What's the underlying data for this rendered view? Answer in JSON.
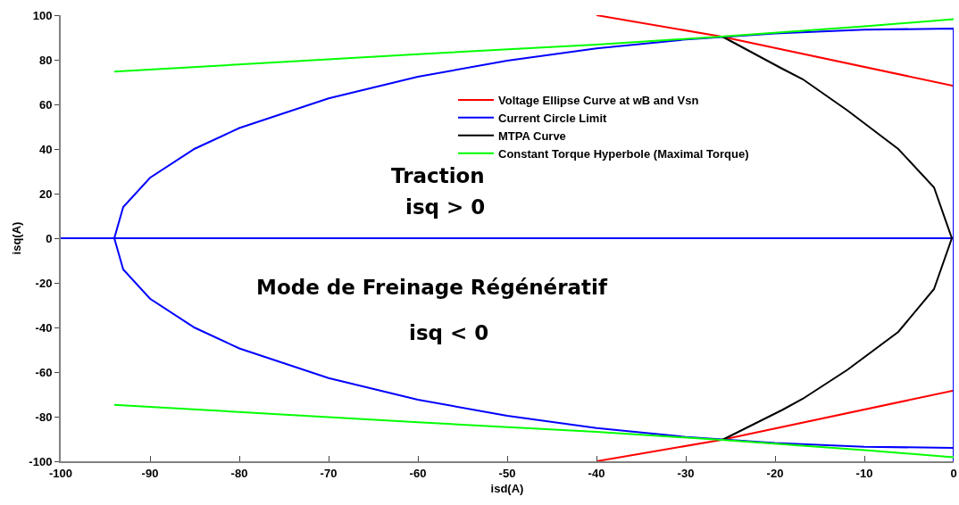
{
  "chart_data": {
    "type": "line",
    "xlabel": "isd(A)",
    "ylabel": "isq(A)",
    "xlim": [
      -100,
      0
    ],
    "xticks": [
      -100,
      -90,
      -80,
      -70,
      -60,
      -50,
      -40,
      -30,
      -20,
      -10,
      0
    ],
    "ylim": [
      -100,
      100
    ],
    "yticks": [
      -100,
      -80,
      -60,
      -40,
      -20,
      0,
      20,
      40,
      60,
      80,
      100
    ],
    "grid": false,
    "legend": "top",
    "marker": "none",
    "line_style": "solid",
    "annotations": [
      "Traction",
      "isq > 0",
      "Mode de Freinage Régénératif",
      "isq < 0"
    ],
    "series": [
      {
        "name": "Voltage Ellipse Curve at wB and Vsn",
        "color": "#ff0000",
        "x": [
          -40,
          -26,
          0,
          null,
          -40,
          -26,
          0
        ],
        "values": [
          100,
          90.4,
          68.3,
          null,
          -100,
          -90.4,
          -68.3
        ]
      },
      {
        "name": "Current Circle Limit",
        "color": "#0000ff",
        "x": [
          0,
          0,
          -10,
          -20,
          -30,
          -40,
          -50,
          -60,
          -70,
          -80,
          -85,
          -90,
          -93,
          -94,
          -93,
          -90,
          -85,
          -80,
          -70,
          -60,
          -50,
          -40,
          -30,
          -20,
          -10,
          0,
          null,
          -100,
          0
        ],
        "values": [
          -100,
          94,
          93.5,
          91.8,
          89.1,
          85.1,
          79.6,
          72.4,
          62.7,
          49.4,
          40.1,
          27.1,
          14,
          0,
          -14,
          -27.1,
          -40.1,
          -49.4,
          -62.7,
          -72.4,
          -79.6,
          -85.1,
          -89.1,
          -91.8,
          -93.5,
          -94,
          null,
          0,
          0
        ]
      },
      {
        "name": "MTPA Curve",
        "color": "#000000",
        "x": [
          -25.9,
          -19.2,
          -16.9,
          -11.9,
          -6.2,
          -2.2,
          -0.2,
          -2.2,
          -6.2,
          -11.9,
          -16.9,
          -19.2,
          -25.9
        ],
        "values": [
          90.4,
          76,
          71.3,
          57.3,
          40,
          22.8,
          0,
          -22.8,
          -42,
          -59,
          -72,
          -77,
          -90.4
        ]
      },
      {
        "name": "Constant Torque Hyperbole (Maximal Torque)",
        "color": "#00ff00",
        "x": [
          -94,
          -60,
          -40,
          -26,
          -10,
          0,
          null,
          -94,
          -60,
          -40,
          -26,
          -10,
          0
        ],
        "values": [
          74.7,
          82.5,
          86.8,
          90.4,
          95,
          98.2,
          null,
          -74.7,
          -82.5,
          -86.8,
          -90.4,
          -95,
          -98.2
        ]
      }
    ]
  }
}
